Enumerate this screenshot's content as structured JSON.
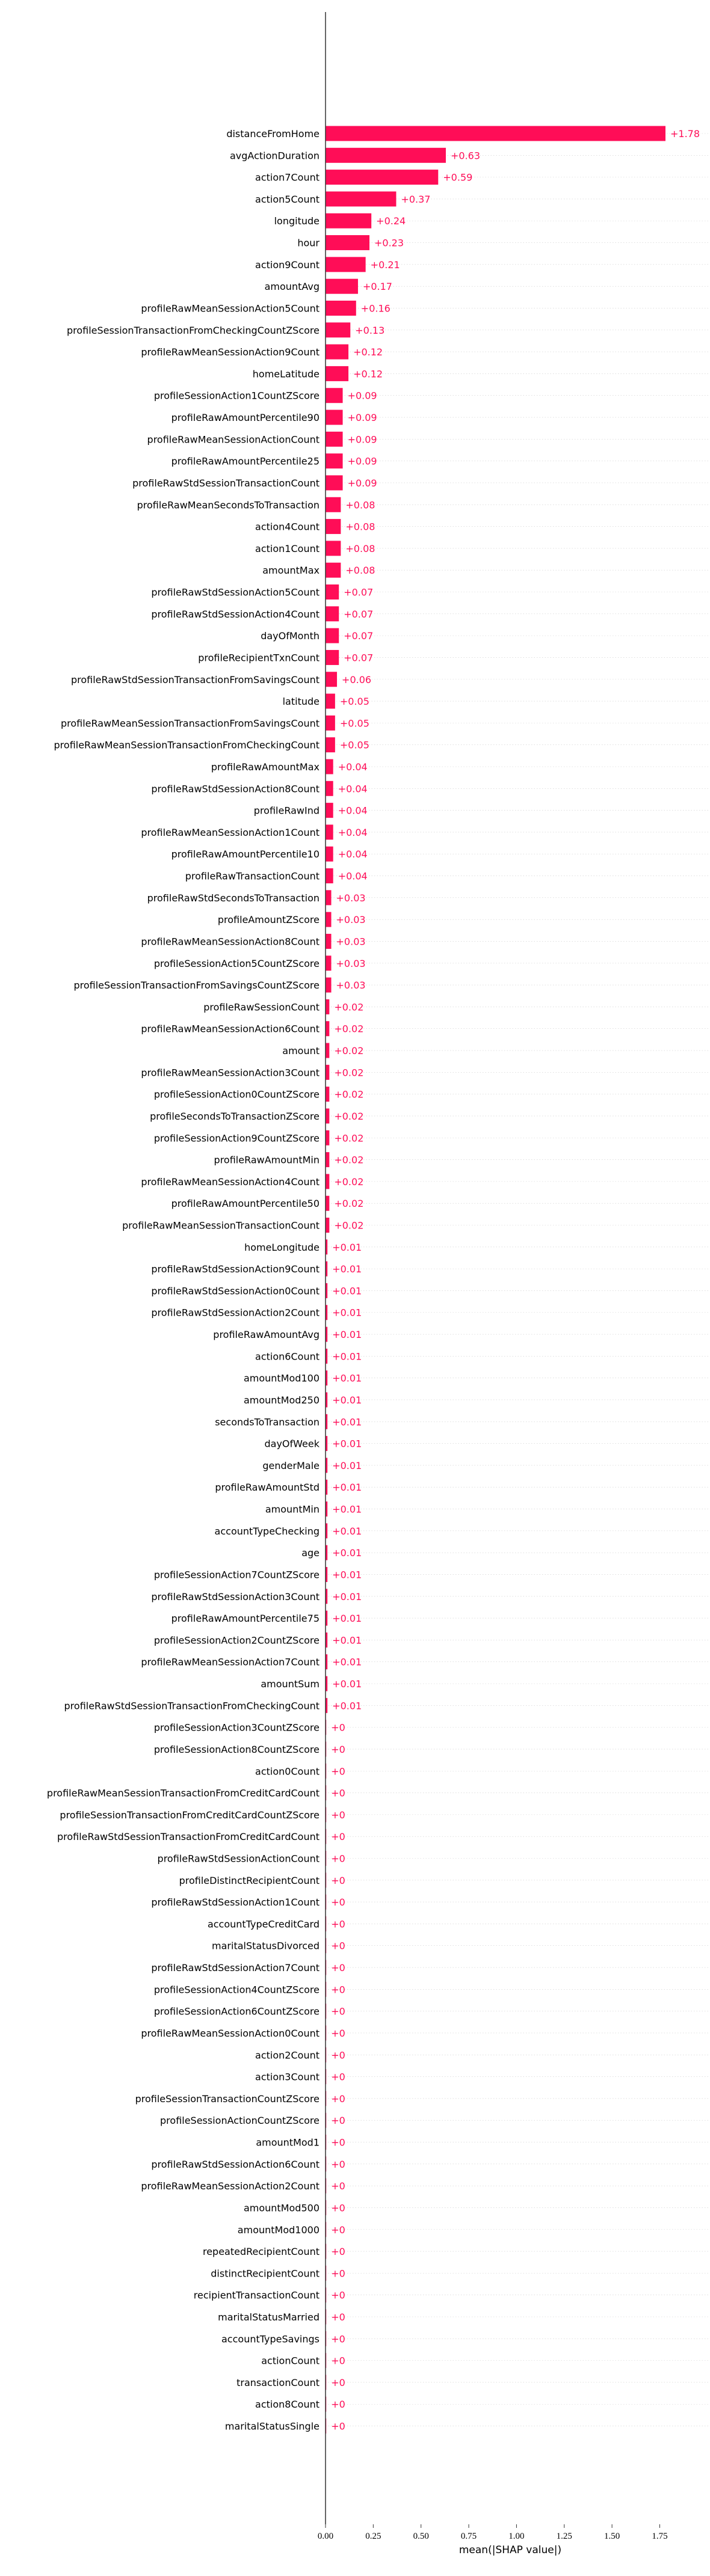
{
  "chart_data": {
    "type": "bar",
    "orientation": "horizontal",
    "title": "",
    "xlabel": "mean(|SHAP value|)",
    "ylabel": "",
    "xlim": [
      0,
      2.05
    ],
    "x_ticks": [
      0.0,
      0.25,
      0.5,
      0.75,
      1.0,
      1.25,
      1.5,
      1.75
    ],
    "x_tick_labels": [
      "0.00",
      "0.25",
      "0.50",
      "0.75",
      "1.00",
      "1.25",
      "1.50",
      "1.75"
    ],
    "grid": true,
    "bar_color": "#ff0d57",
    "value_label_color": "#ff0d57",
    "categories": [
      "distanceFromHome",
      "avgActionDuration",
      "action7Count",
      "action5Count",
      "longitude",
      "hour",
      "action9Count",
      "amountAvg",
      "profileRawMeanSessionAction5Count",
      "profileSessionTransactionFromCheckingCountZScore",
      "profileRawMeanSessionAction9Count",
      "homeLatitude",
      "profileSessionAction1CountZScore",
      "profileRawAmountPercentile90",
      "profileRawMeanSessionActionCount",
      "profileRawAmountPercentile25",
      "profileRawStdSessionTransactionCount",
      "profileRawMeanSecondsToTransaction",
      "action4Count",
      "action1Count",
      "amountMax",
      "profileRawStdSessionAction5Count",
      "profileRawStdSessionAction4Count",
      "dayOfMonth",
      "profileRecipientTxnCount",
      "profileRawStdSessionTransactionFromSavingsCount",
      "latitude",
      "profileRawMeanSessionTransactionFromSavingsCount",
      "profileRawMeanSessionTransactionFromCheckingCount",
      "profileRawAmountMax",
      "profileRawStdSessionAction8Count",
      "profileRawInd",
      "profileRawMeanSessionAction1Count",
      "profileRawAmountPercentile10",
      "profileRawTransactionCount",
      "profileRawStdSecondsToTransaction",
      "profileAmountZScore",
      "profileRawMeanSessionAction8Count",
      "profileSessionAction5CountZScore",
      "profileSessionTransactionFromSavingsCountZScore",
      "profileRawSessionCount",
      "profileRawMeanSessionAction6Count",
      "amount",
      "profileRawMeanSessionAction3Count",
      "profileSessionAction0CountZScore",
      "profileSecondsToTransactionZScore",
      "profileSessionAction9CountZScore",
      "profileRawAmountMin",
      "profileRawMeanSessionAction4Count",
      "profileRawAmountPercentile50",
      "profileRawMeanSessionTransactionCount",
      "homeLongitude",
      "profileRawStdSessionAction9Count",
      "profileRawStdSessionAction0Count",
      "profileRawStdSessionAction2Count",
      "profileRawAmountAvg",
      "action6Count",
      "amountMod100",
      "amountMod250",
      "secondsToTransaction",
      "dayOfWeek",
      "genderMale",
      "profileRawAmountStd",
      "amountMin",
      "accountTypeChecking",
      "age",
      "profileSessionAction7CountZScore",
      "profileRawStdSessionAction3Count",
      "profileRawAmountPercentile75",
      "profileSessionAction2CountZScore",
      "profileRawMeanSessionAction7Count",
      "amountSum",
      "profileRawStdSessionTransactionFromCheckingCount",
      "profileSessionAction3CountZScore",
      "profileSessionAction8CountZScore",
      "action0Count",
      "profileRawMeanSessionTransactionFromCreditCardCount",
      "profileSessionTransactionFromCreditCardCountZScore",
      "profileRawStdSessionTransactionFromCreditCardCount",
      "profileRawStdSessionActionCount",
      "profileDistinctRecipientCount",
      "profileRawStdSessionAction1Count",
      "accountTypeCreditCard",
      "maritalStatusDivorced",
      "profileRawStdSessionAction7Count",
      "profileSessionAction4CountZScore",
      "profileSessionAction6CountZScore",
      "profileRawMeanSessionAction0Count",
      "action2Count",
      "action3Count",
      "profileSessionTransactionCountZScore",
      "profileSessionActionCountZScore",
      "amountMod1",
      "profileRawStdSessionAction6Count",
      "profileRawMeanSessionAction2Count",
      "amountMod500",
      "amountMod1000",
      "repeatedRecipientCount",
      "distinctRecipientCount",
      "recipientTransactionCount",
      "maritalStatusMarried",
      "accountTypeSavings",
      "actionCount",
      "transactionCount",
      "action8Count",
      "maritalStatusSingle"
    ],
    "values": [
      1.78,
      0.63,
      0.59,
      0.37,
      0.24,
      0.23,
      0.21,
      0.17,
      0.16,
      0.13,
      0.12,
      0.12,
      0.09,
      0.09,
      0.09,
      0.09,
      0.09,
      0.08,
      0.08,
      0.08,
      0.08,
      0.07,
      0.07,
      0.07,
      0.07,
      0.06,
      0.05,
      0.05,
      0.05,
      0.04,
      0.04,
      0.04,
      0.04,
      0.04,
      0.04,
      0.03,
      0.03,
      0.03,
      0.03,
      0.03,
      0.02,
      0.02,
      0.02,
      0.02,
      0.02,
      0.02,
      0.02,
      0.02,
      0.02,
      0.02,
      0.02,
      0.01,
      0.01,
      0.01,
      0.01,
      0.01,
      0.01,
      0.01,
      0.01,
      0.01,
      0.01,
      0.01,
      0.01,
      0.01,
      0.01,
      0.01,
      0.01,
      0.01,
      0.01,
      0.01,
      0.01,
      0.01,
      0.01,
      0.0,
      0.0,
      0.0,
      0.0,
      0.0,
      0.0,
      0.0,
      0.0,
      0.0,
      0.0,
      0.0,
      0.0,
      0.0,
      0.0,
      0.0,
      0.0,
      0.0,
      0.0,
      0.0,
      0.0,
      0.0,
      0.0,
      0.0,
      0.0,
      0.0,
      0.0,
      0.0,
      0.0,
      0.0,
      0.0,
      0.0,
      0.0,
      0.0
    ],
    "value_labels": [
      "+1.78",
      "+0.63",
      "+0.59",
      "+0.37",
      "+0.24",
      "+0.23",
      "+0.21",
      "+0.17",
      "+0.16",
      "+0.13",
      "+0.12",
      "+0.12",
      "+0.09",
      "+0.09",
      "+0.09",
      "+0.09",
      "+0.09",
      "+0.08",
      "+0.08",
      "+0.08",
      "+0.08",
      "+0.07",
      "+0.07",
      "+0.07",
      "+0.07",
      "+0.06",
      "+0.05",
      "+0.05",
      "+0.05",
      "+0.04",
      "+0.04",
      "+0.04",
      "+0.04",
      "+0.04",
      "+0.04",
      "+0.03",
      "+0.03",
      "+0.03",
      "+0.03",
      "+0.03",
      "+0.02",
      "+0.02",
      "+0.02",
      "+0.02",
      "+0.02",
      "+0.02",
      "+0.02",
      "+0.02",
      "+0.02",
      "+0.02",
      "+0.02",
      "+0.01",
      "+0.01",
      "+0.01",
      "+0.01",
      "+0.01",
      "+0.01",
      "+0.01",
      "+0.01",
      "+0.01",
      "+0.01",
      "+0.01",
      "+0.01",
      "+0.01",
      "+0.01",
      "+0.01",
      "+0.01",
      "+0.01",
      "+0.01",
      "+0.01",
      "+0.01",
      "+0.01",
      "+0.01",
      "+0",
      "+0",
      "+0",
      "+0",
      "+0",
      "+0",
      "+0",
      "+0",
      "+0",
      "+0",
      "+0",
      "+0",
      "+0",
      "+0",
      "+0",
      "+0",
      "+0",
      "+0",
      "+0",
      "+0",
      "+0",
      "+0",
      "+0",
      "+0",
      "+0",
      "+0",
      "+0",
      "+0",
      "+0",
      "+0",
      "+0",
      "+0",
      "+0"
    ]
  }
}
